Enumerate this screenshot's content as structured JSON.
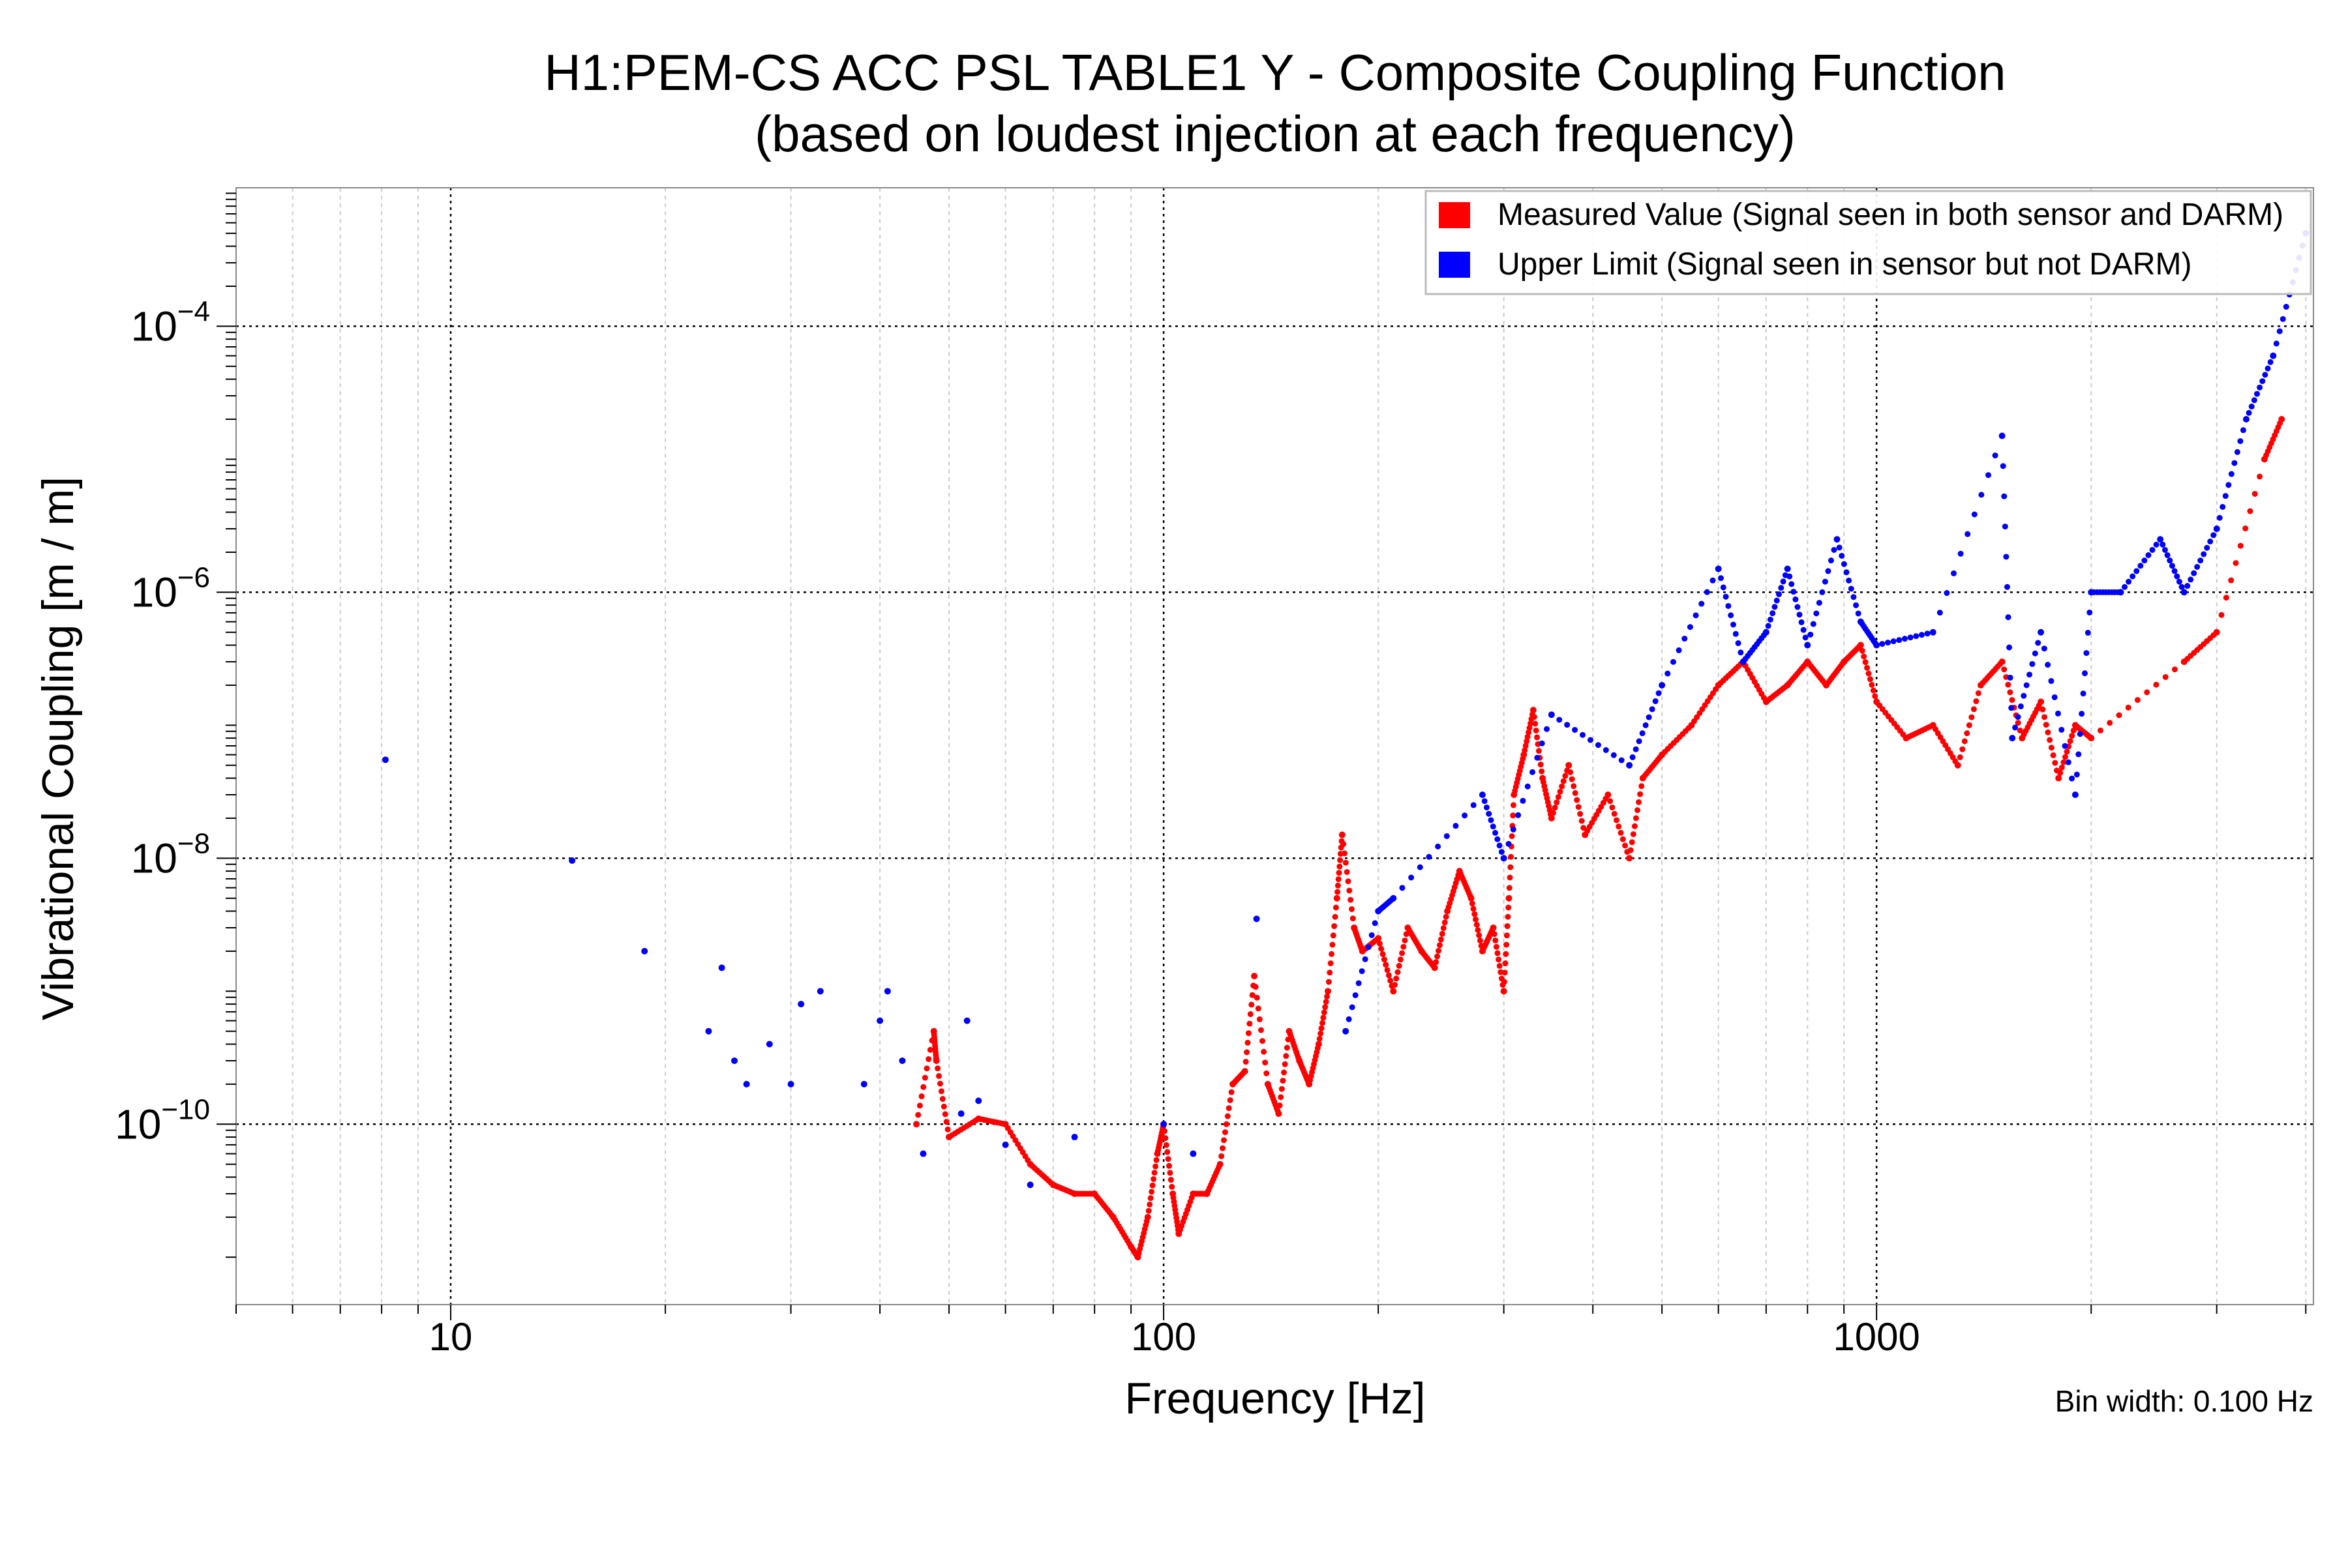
{
  "chart_data": {
    "type": "scatter",
    "title": "H1:PEM-CS ACC PSL TABLE1 Y - Composite Coupling Function",
    "subtitle": "(based on loudest injection at each frequency)",
    "xlabel": "Frequency [Hz]",
    "ylabel": "Vibrational Coupling [m / m]",
    "annotation": "Bin width: 0.100 Hz",
    "xscale": "log",
    "yscale": "log",
    "xlim": [
      5,
      4100
    ],
    "ylim": [
      4.4e-12,
      0.0011
    ],
    "x_ticks": [
      {
        "base": "10",
        "label": "10",
        "value": 10
      },
      {
        "label": "100",
        "value": 100
      },
      {
        "label": "1000",
        "value": 1000
      }
    ],
    "y_ticks": [
      {
        "base": "10",
        "exp": "−4",
        "value": 0.0001
      },
      {
        "base": "10",
        "exp": "−6",
        "value": 1e-06
      },
      {
        "base": "10",
        "exp": "−8",
        "value": 1e-08
      },
      {
        "base": "10",
        "exp": "−10",
        "value": 1e-10
      }
    ],
    "grid": true,
    "legend_position": "top-right",
    "series": [
      {
        "name": "Measured Value (Signal seen in both sensor and DARM)",
        "color": "#ff0000",
        "points": [
          [
            45,
            1e-10
          ],
          [
            47.6,
            5e-10
          ],
          [
            48,
            3e-10
          ],
          [
            50,
            8e-11
          ],
          [
            55,
            1.1e-10
          ],
          [
            60,
            1e-10
          ],
          [
            65,
            5e-11
          ],
          [
            70,
            3.5e-11
          ],
          [
            75,
            3e-11
          ],
          [
            80,
            3e-11
          ],
          [
            85,
            2e-11
          ],
          [
            90,
            1.2e-11
          ],
          [
            92,
            1e-11
          ],
          [
            95,
            2e-11
          ],
          [
            98,
            6e-11
          ],
          [
            100,
            1e-10
          ],
          [
            103,
            3e-11
          ],
          [
            105,
            1.5e-11
          ],
          [
            110,
            3e-11
          ],
          [
            115,
            3e-11
          ],
          [
            120,
            5e-11
          ],
          [
            125,
            2e-10
          ],
          [
            130,
            2.5e-10
          ],
          [
            134,
            1.3e-09
          ],
          [
            140,
            2e-10
          ],
          [
            145,
            1.2e-10
          ],
          [
            150,
            5e-10
          ],
          [
            155,
            3e-10
          ],
          [
            160,
            2e-10
          ],
          [
            165,
            4e-10
          ],
          [
            170,
            1e-09
          ],
          [
            175,
            5e-09
          ],
          [
            178,
            1.5e-08
          ],
          [
            185,
            3e-09
          ],
          [
            190,
            2e-09
          ],
          [
            200,
            2.5e-09
          ],
          [
            210,
            1e-09
          ],
          [
            220,
            3e-09
          ],
          [
            230,
            2e-09
          ],
          [
            240,
            1.5e-09
          ],
          [
            250,
            4e-09
          ],
          [
            260,
            8e-09
          ],
          [
            270,
            5e-09
          ],
          [
            280,
            2e-09
          ],
          [
            290,
            3e-09
          ],
          [
            300,
            1e-09
          ],
          [
            305,
            5e-09
          ],
          [
            310,
            3e-08
          ],
          [
            320,
            6e-08
          ],
          [
            330,
            1.3e-07
          ],
          [
            340,
            4e-08
          ],
          [
            350,
            2e-08
          ],
          [
            370,
            5e-08
          ],
          [
            390,
            1.5e-08
          ],
          [
            420,
            3e-08
          ],
          [
            450,
            1e-08
          ],
          [
            470,
            4e-08
          ],
          [
            500,
            6e-08
          ],
          [
            550,
            1e-07
          ],
          [
            600,
            2e-07
          ],
          [
            650,
            3e-07
          ],
          [
            700,
            1.5e-07
          ],
          [
            750,
            2e-07
          ],
          [
            800,
            3e-07
          ],
          [
            850,
            2e-07
          ],
          [
            900,
            3e-07
          ],
          [
            950,
            4e-07
          ],
          [
            1000,
            1.5e-07
          ],
          [
            1100,
            8e-08
          ],
          [
            1200,
            1e-07
          ],
          [
            1300,
            5e-08
          ],
          [
            1400,
            2e-07
          ],
          [
            1500,
            3e-07
          ],
          [
            1600,
            8e-08
          ],
          [
            1700,
            1.5e-07
          ],
          [
            1800,
            4e-08
          ],
          [
            1900,
            1e-07
          ],
          [
            2000,
            8e-08
          ],
          [
            2700,
            3e-07
          ],
          [
            3000,
            5e-07
          ],
          [
            3500,
            1e-05
          ],
          [
            3700,
            2e-05
          ]
        ]
      },
      {
        "name": "Upper Limit (Signal seen in sensor but not DARM)",
        "color": "#0000ff",
        "points": [
          [
            8.1,
            5.5e-08
          ],
          [
            14.8,
            9.6e-09
          ],
          [
            18.7,
            2e-09
          ],
          [
            23,
            5e-10
          ],
          [
            24,
            1.5e-09
          ],
          [
            25,
            3e-10
          ],
          [
            26,
            2e-10
          ],
          [
            28,
            4e-10
          ],
          [
            30,
            2e-10
          ],
          [
            31,
            8e-10
          ],
          [
            33,
            1e-09
          ],
          [
            38,
            2e-10
          ],
          [
            40,
            6e-10
          ],
          [
            41,
            1e-09
          ],
          [
            43,
            3e-10
          ],
          [
            46,
            6e-11
          ],
          [
            52,
            1.2e-10
          ],
          [
            53,
            6e-10
          ],
          [
            55,
            1.5e-10
          ],
          [
            60,
            7e-11
          ],
          [
            65,
            3.5e-11
          ],
          [
            75,
            8e-11
          ],
          [
            100,
            1e-10
          ],
          [
            110,
            6e-11
          ],
          [
            135,
            3.5e-09
          ],
          [
            180,
            5e-10
          ],
          [
            200,
            4e-09
          ],
          [
            210,
            5e-09
          ],
          [
            280,
            3e-08
          ],
          [
            300,
            1e-08
          ],
          [
            350,
            1.2e-07
          ],
          [
            450,
            5e-08
          ],
          [
            500,
            2e-07
          ],
          [
            600,
            1.5e-06
          ],
          [
            650,
            3e-07
          ],
          [
            700,
            5e-07
          ],
          [
            750,
            1.5e-06
          ],
          [
            800,
            4e-07
          ],
          [
            880,
            2.5e-06
          ],
          [
            950,
            6e-07
          ],
          [
            1000,
            4e-07
          ],
          [
            1200,
            5e-07
          ],
          [
            1500,
            1.5e-05
          ],
          [
            1550,
            8e-08
          ],
          [
            1700,
            5e-07
          ],
          [
            1900,
            3e-08
          ],
          [
            2000,
            1e-06
          ],
          [
            2200,
            1e-06
          ],
          [
            2500,
            2.5e-06
          ],
          [
            2700,
            1e-06
          ],
          [
            3000,
            3e-06
          ],
          [
            3300,
            2e-05
          ],
          [
            3600,
            6e-05
          ],
          [
            4000,
            0.0005
          ]
        ]
      }
    ]
  }
}
